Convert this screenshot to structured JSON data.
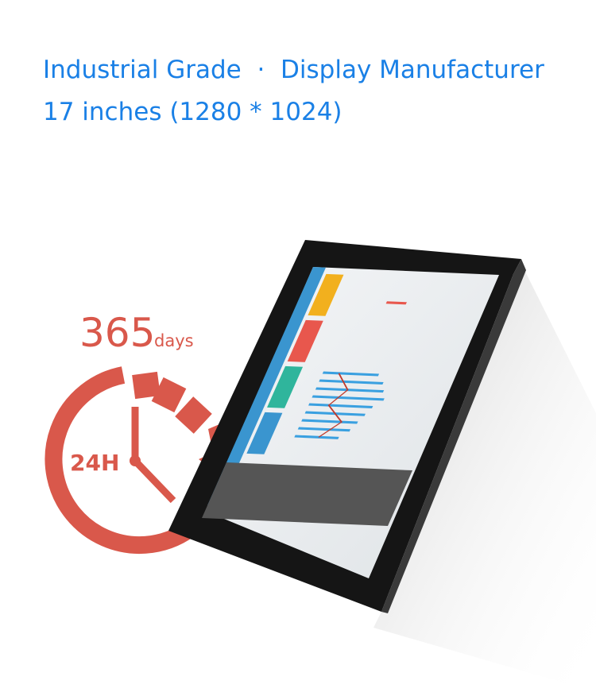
{
  "header": {
    "line1": "Industrial Grade  ·  Display Manufacturer",
    "line2": "17 inches (1280 * 1024)"
  },
  "badge": {
    "number": "365",
    "unit": "days",
    "clock_label": "24H"
  }
}
